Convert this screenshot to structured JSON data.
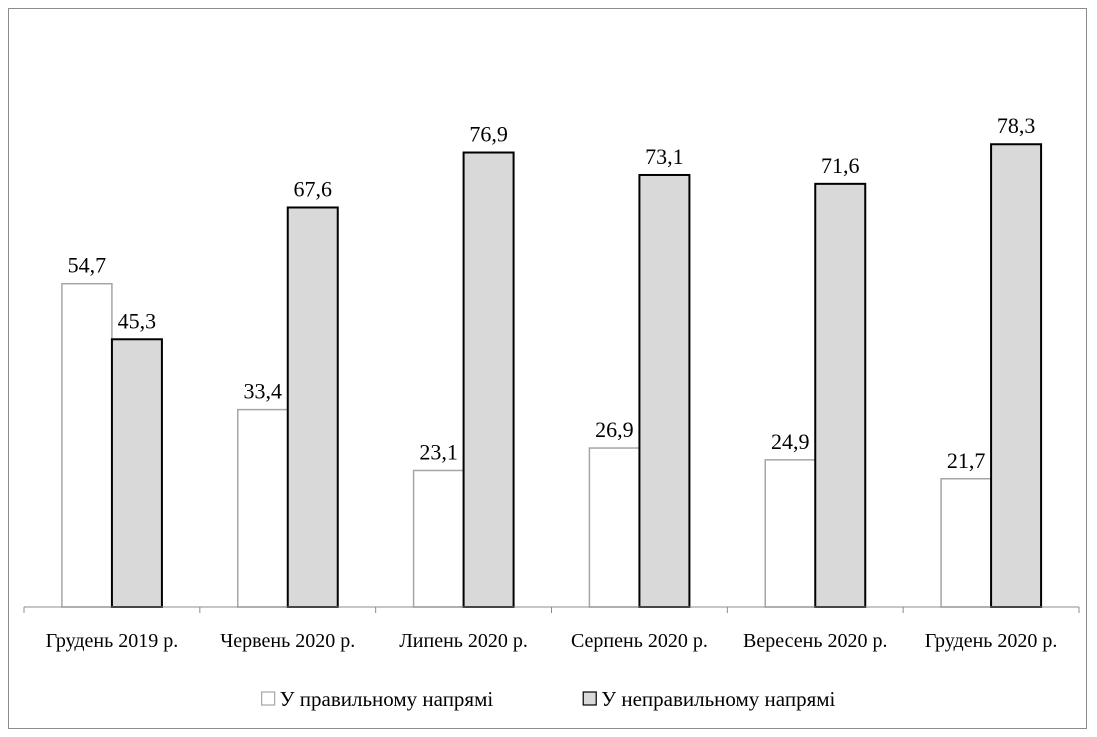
{
  "chart_data": {
    "type": "bar",
    "categories": [
      "Грудень 2019 р.",
      "Червень 2020 р.",
      "Липень 2020 р.",
      "Серпень 2020 р.",
      "Вересень 2020 р.",
      "Грудень 2020 р."
    ],
    "series": [
      {
        "name": "У правильному напрямі",
        "values": [
          54.7,
          33.4,
          23.1,
          26.9,
          24.9,
          21.7
        ],
        "labels": [
          "54,7",
          "33,4",
          "23,1",
          "26,9",
          "24,9",
          "21,7"
        ],
        "fill": "#ffffff",
        "stroke": "#a6a6a6"
      },
      {
        "name": "У неправильному напрямі",
        "values": [
          45.3,
          67.6,
          76.9,
          73.1,
          71.6,
          78.3
        ],
        "labels": [
          "45,3",
          "67,6",
          "76,9",
          "73,1",
          "71,6",
          "78,3"
        ],
        "fill": "#d9d9d9",
        "stroke": "#000000"
      }
    ],
    "ylim": [
      0,
      100
    ],
    "grid": false,
    "legend_position": "bottom",
    "title": "",
    "xlabel": "",
    "ylabel": ""
  }
}
